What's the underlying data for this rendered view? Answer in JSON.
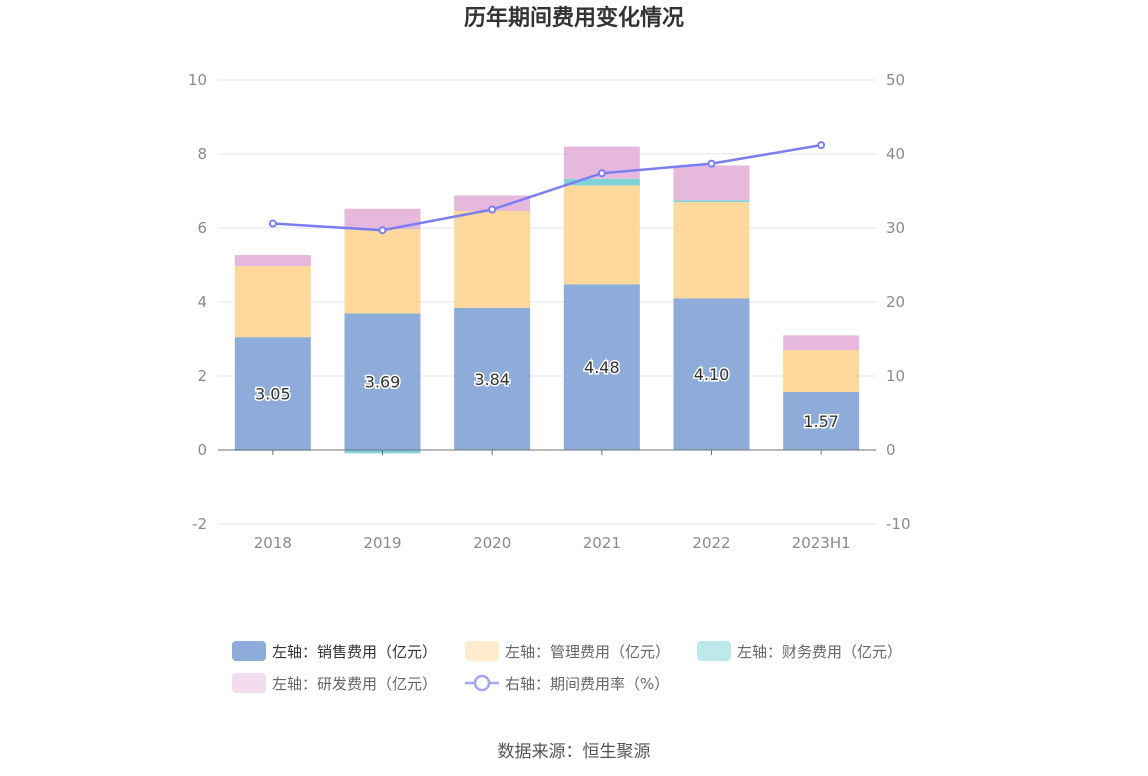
{
  "chart_data": {
    "type": "bar",
    "stacked": true,
    "title": "历年期间费用变化情况",
    "categories": [
      "2018",
      "2019",
      "2020",
      "2021",
      "2022",
      "2023H1"
    ],
    "left_axis": {
      "min": -2,
      "max": 10,
      "ticks": [
        "-2",
        "0",
        "2",
        "4",
        "6",
        "8",
        "10"
      ]
    },
    "right_axis": {
      "min": -10,
      "max": 50,
      "ticks": [
        "-10",
        "0",
        "10",
        "20",
        "30",
        "40",
        "50"
      ]
    },
    "series": [
      {
        "name": "左轴：销售费用（亿元）",
        "axis": "left",
        "kind": "bar",
        "color": "#8eacd9",
        "values": [
          3.05,
          3.69,
          3.84,
          4.48,
          4.1,
          1.57
        ],
        "labels": [
          "3.05",
          "3.69",
          "3.84",
          "4.48",
          "4.10",
          "1.57"
        ]
      },
      {
        "name": "左轴：管理费用（亿元）",
        "axis": "left",
        "kind": "bar",
        "color": "#fed99b",
        "values": [
          1.92,
          2.28,
          2.62,
          2.67,
          2.6,
          1.13
        ]
      },
      {
        "name": "左轴：财务费用（亿元）",
        "axis": "left",
        "kind": "bar",
        "color": "#7ed3d9",
        "values": [
          -0.02,
          -0.09,
          -0.01,
          0.18,
          0.05,
          -0.01
        ]
      },
      {
        "name": "左轴：研发费用（亿元）",
        "axis": "left",
        "kind": "bar",
        "color": "#e6b9dc",
        "values": [
          0.3,
          0.55,
          0.42,
          0.87,
          0.94,
          0.4
        ]
      },
      {
        "name": "右轴：期间费用率（%）",
        "axis": "right",
        "kind": "line",
        "color": "#7b7ef0",
        "values": [
          30.6,
          29.7,
          32.5,
          37.4,
          38.7,
          41.2
        ]
      }
    ],
    "legend_position": "bottom"
  },
  "source": "数据来源：恒生聚源"
}
